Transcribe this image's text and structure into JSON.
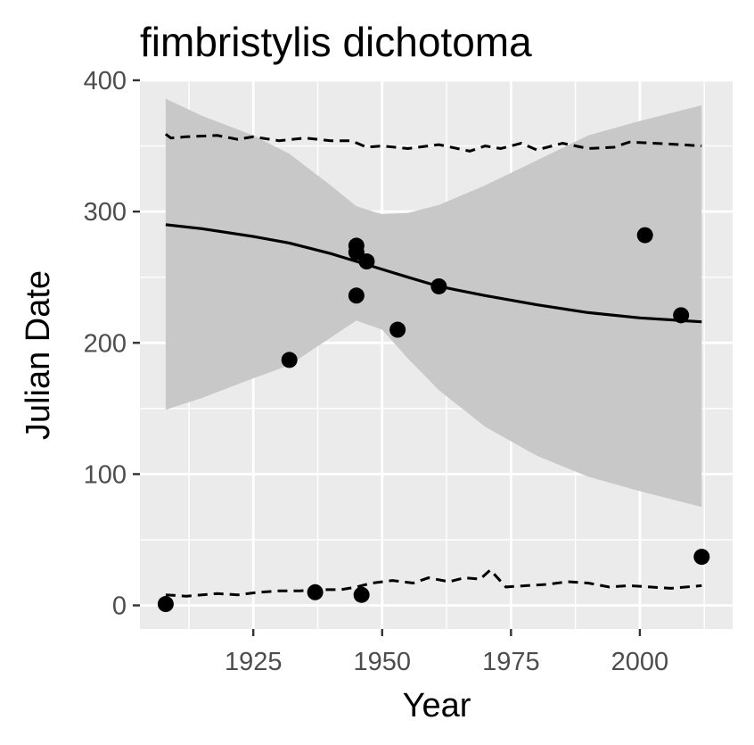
{
  "chart_data": {
    "type": "scatter",
    "title": "fimbristylis dichotoma",
    "xlabel": "Year",
    "ylabel": "Julian Date",
    "xlim": [
      1903,
      2018
    ],
    "ylim": [
      -18,
      400
    ],
    "x_ticks": [
      1925,
      1950,
      1975,
      2000
    ],
    "y_ticks": [
      0,
      100,
      200,
      300,
      400
    ],
    "grid": true,
    "legend": "none",
    "colors": {
      "panel_background": "#ebebeb",
      "grid": "#ffffff",
      "band": "#c8c8c8",
      "points": "#000000",
      "lines": "#000000",
      "tick_text": "#4d4d4d",
      "tick_mark": "#333333"
    },
    "series": [
      {
        "kind": "points",
        "x": [
          1908,
          1932,
          1937,
          1945,
          1945,
          1945,
          1946,
          1947,
          1953,
          1961,
          2001,
          2008,
          2012
        ],
        "y": [
          1,
          187,
          10,
          274,
          269,
          236,
          8,
          262,
          210,
          243,
          282,
          221,
          37
        ]
      },
      {
        "kind": "fit_line",
        "x": [
          1908,
          1915,
          1925,
          1932,
          1940,
          1945,
          1950,
          1955,
          1961,
          1970,
          1980,
          1990,
          2000,
          2012
        ],
        "y": [
          290,
          287,
          281,
          276,
          268,
          262,
          256,
          250,
          243,
          236,
          229,
          223,
          219,
          216
        ]
      },
      {
        "kind": "confidence_band",
        "x": [
          1908,
          1915,
          1925,
          1932,
          1940,
          1945,
          1950,
          1955,
          1961,
          1970,
          1980,
          1990,
          2000,
          2012
        ],
        "upper": [
          386,
          373,
          358,
          344,
          320,
          304,
          298,
          299,
          305,
          320,
          339,
          358,
          369,
          381
        ],
        "lower": [
          149,
          158,
          173,
          183,
          204,
          217,
          210,
          188,
          164,
          136,
          114,
          98,
          87,
          75
        ]
      },
      {
        "kind": "dashed_upper",
        "x": [
          1908,
          1909,
          1912,
          1918,
          1922,
          1925,
          1930,
          1935,
          1940,
          1944,
          1947,
          1950,
          1955,
          1961,
          1967,
          1970,
          1973,
          1977,
          1980,
          1985,
          1990,
          1995,
          1998,
          2003,
          2008,
          2012
        ],
        "y": [
          359,
          356,
          357,
          358,
          355,
          357,
          354,
          356,
          354,
          354,
          349,
          350,
          348,
          351,
          346,
          350,
          348,
          352,
          347,
          352,
          348,
          349,
          353,
          352,
          351,
          350
        ]
      },
      {
        "kind": "dashed_lower",
        "x": [
          1908,
          1912,
          1918,
          1922,
          1926,
          1930,
          1934,
          1938,
          1942,
          1945,
          1948,
          1952,
          1956,
          1959,
          1963,
          1966,
          1969,
          1971,
          1974,
          1978,
          1982,
          1986,
          1990,
          1994,
          1998,
          2002,
          2006,
          2012
        ],
        "y": [
          8,
          7,
          9,
          8,
          10,
          11,
          11,
          12,
          12,
          14,
          17,
          19,
          17,
          21,
          18,
          21,
          20,
          27,
          14,
          15,
          16,
          18,
          17,
          14,
          15,
          14,
          13,
          15
        ]
      }
    ]
  }
}
